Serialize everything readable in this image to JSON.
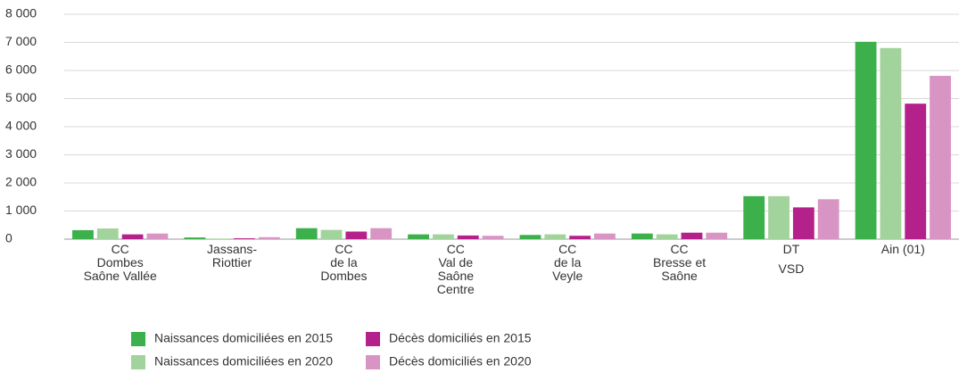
{
  "chart_data": {
    "type": "bar",
    "categories": [
      [
        "CC",
        "Dombes",
        "Saône Vallée"
      ],
      [
        "Jassans-",
        "Riottier"
      ],
      [
        "CC",
        "de la",
        "Dombes"
      ],
      [
        "CC",
        "Val de",
        "Saône",
        "Centre"
      ],
      [
        "CC",
        "de la",
        "Veyle"
      ],
      [
        "CC",
        "Bresse et",
        "Saône"
      ],
      [
        "DT",
        "VSD"
      ],
      [
        "Ain (01)"
      ]
    ],
    "series": [
      {
        "name": "Naissances domiciliées en 2015",
        "color": "#3cb04a",
        "values": [
          320,
          60,
          390,
          170,
          150,
          200,
          1530,
          7020
        ]
      },
      {
        "name": "Naissances domiciliées en 2020",
        "color": "#a3d39c",
        "values": [
          380,
          20,
          330,
          170,
          170,
          170,
          1530,
          6800
        ]
      },
      {
        "name": "Décès domiciliés en 2015",
        "color": "#b5218a",
        "values": [
          170,
          30,
          270,
          130,
          120,
          230,
          1130,
          4820
        ]
      },
      {
        "name": "Décès domiciliés en 2020",
        "color": "#d895c4",
        "values": [
          200,
          70,
          390,
          120,
          200,
          230,
          1420,
          5810
        ]
      }
    ],
    "ylim": [
      0,
      8000
    ],
    "yticks": [
      0,
      {
        "value": 1000,
        "label": "1 000"
      },
      {
        "value": 2000,
        "label": "2 000"
      },
      {
        "value": 3000,
        "label": "3 000"
      },
      {
        "value": 4000,
        "label": "4 000"
      },
      {
        "value": 5000,
        "label": "5 000"
      },
      {
        "value": 6000,
        "label": "6 000"
      },
      {
        "value": 7000,
        "label": "7 000"
      },
      {
        "value": 8000,
        "label": "8 000"
      }
    ],
    "grid": true
  }
}
